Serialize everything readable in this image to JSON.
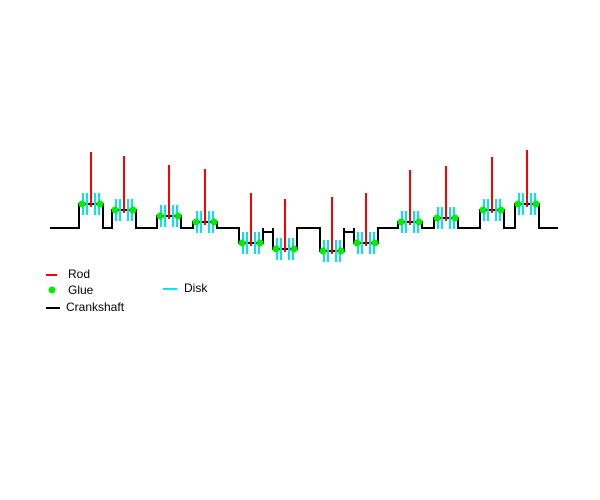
{
  "legend": {
    "rod": "Rod",
    "glue": "Glue",
    "crankshaft": "Crankshaft",
    "disk": "Disk"
  }
}
